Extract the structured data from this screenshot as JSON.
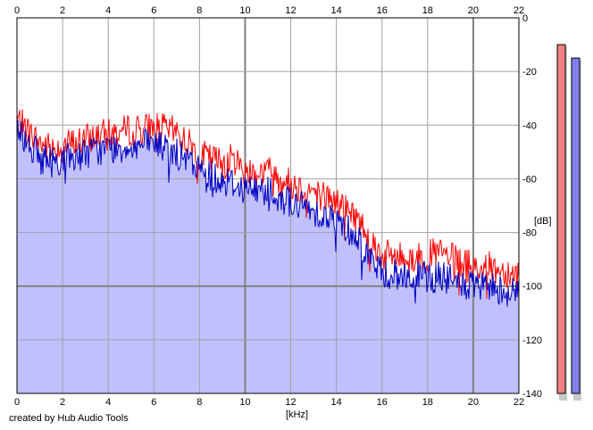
{
  "credit": "created by Hub Audio Tools",
  "chart_data": {
    "type": "area",
    "xlabel": "[kHz]",
    "ylabel": "[dB]",
    "xlim": [
      0,
      22
    ],
    "ylim": [
      -140,
      0
    ],
    "x_ticks": [
      "0",
      "2",
      "4",
      "6",
      "8",
      "10",
      "12",
      "14",
      "16",
      "18",
      "20",
      "22"
    ],
    "y_ticks": [
      "0",
      "-20",
      "-40",
      "-60",
      "-80",
      "-100",
      "-120",
      "-140"
    ],
    "grid": true,
    "colors": {
      "fill": "#c0c0ff",
      "left_channel": "#ff0000",
      "right_channel": "#0000c0",
      "grid": "#a0a0a0",
      "grid_major": "#808080",
      "meter_left": "#f08080",
      "meter_right": "#8080ee"
    },
    "series": [
      {
        "x": [
          0,
          0.5,
          1,
          1.5,
          2,
          2.5,
          3,
          3.5,
          4,
          4.5,
          5,
          5.5,
          6,
          6.5,
          7,
          7.5,
          8,
          8.5,
          9,
          9.5,
          10,
          10.5,
          11,
          11.5,
          12,
          12.5,
          13,
          13.5,
          14,
          14.5,
          15,
          15.5,
          16,
          16.5,
          17,
          17.5,
          18,
          18.5,
          19,
          19.5,
          20,
          20.5,
          21,
          21.5,
          22
        ],
        "y": [
          -37,
          -42,
          -46,
          -48,
          -47,
          -46,
          -45,
          -43,
          -43,
          -42,
          -41,
          -41,
          -40,
          -41,
          -42,
          -46,
          -50,
          -52,
          -53,
          -52,
          -56,
          -57,
          -56,
          -59,
          -61,
          -63,
          -64,
          -66,
          -68,
          -71,
          -75,
          -82,
          -88,
          -88,
          -89,
          -89,
          -88,
          -87,
          -89,
          -91,
          -92,
          -92,
          -93,
          -94,
          -95
        ]
      },
      {
        "x": [
          0,
          0.5,
          1,
          1.5,
          2,
          2.5,
          3,
          3.5,
          4,
          4.5,
          5,
          5.5,
          6,
          6.5,
          7,
          7.5,
          8,
          8.5,
          9,
          9.5,
          10,
          10.5,
          11,
          11.5,
          12,
          12.5,
          13,
          13.5,
          14,
          14.5,
          15,
          15.5,
          16,
          16.5,
          17,
          17.5,
          18,
          18.5,
          19,
          19.5,
          20,
          20.5,
          21,
          21.5,
          22
        ],
        "y": [
          -40,
          -46,
          -51,
          -53,
          -52,
          -51,
          -50,
          -49,
          -48,
          -48,
          -47,
          -47,
          -46,
          -48,
          -50,
          -53,
          -56,
          -58,
          -60,
          -61,
          -63,
          -64,
          -63,
          -66,
          -68,
          -70,
          -71,
          -73,
          -75,
          -78,
          -82,
          -89,
          -95,
          -95,
          -96,
          -96,
          -96,
          -96,
          -97,
          -99,
          -100,
          -100,
          -100,
          -101,
          -102
        ]
      }
    ],
    "meters": {
      "left_peak_db": -10,
      "right_peak_db": -15
    }
  }
}
